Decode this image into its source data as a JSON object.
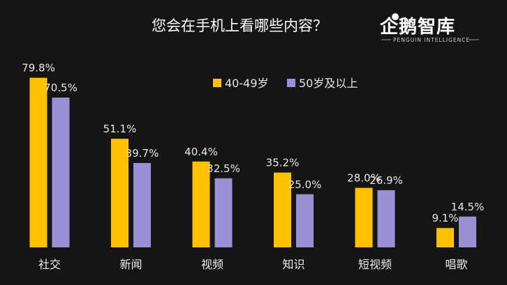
{
  "branding": {
    "name": "企鹅智库",
    "tagline": "PENGUIN INTELLIGENCE"
  },
  "colors": {
    "series_a": "#FFC000",
    "series_b": "#9B8FD6",
    "background": "#151515"
  },
  "chart_data": {
    "type": "bar",
    "title": "您会在手机上看哪些内容？",
    "xlabel": "",
    "ylabel": "",
    "ylim": [
      0,
      85
    ],
    "grid": false,
    "legend_position": "top-right",
    "categories": [
      "社交",
      "新闻",
      "视频",
      "知识",
      "短视频",
      "唱歌"
    ],
    "series": [
      {
        "name": "40-49岁",
        "values": [
          79.8,
          51.1,
          40.4,
          35.2,
          28.0,
          9.1
        ],
        "labels": [
          "79.8%",
          "51.1%",
          "40.4%",
          "35.2%",
          "28.0%",
          "9.1%"
        ]
      },
      {
        "name": "50岁及以上",
        "values": [
          70.5,
          39.7,
          32.5,
          25.0,
          26.9,
          14.5
        ],
        "labels": [
          "70.5%",
          "39.7%",
          "32.5%",
          "25.0%",
          "26.9%",
          "14.5%"
        ]
      }
    ]
  }
}
